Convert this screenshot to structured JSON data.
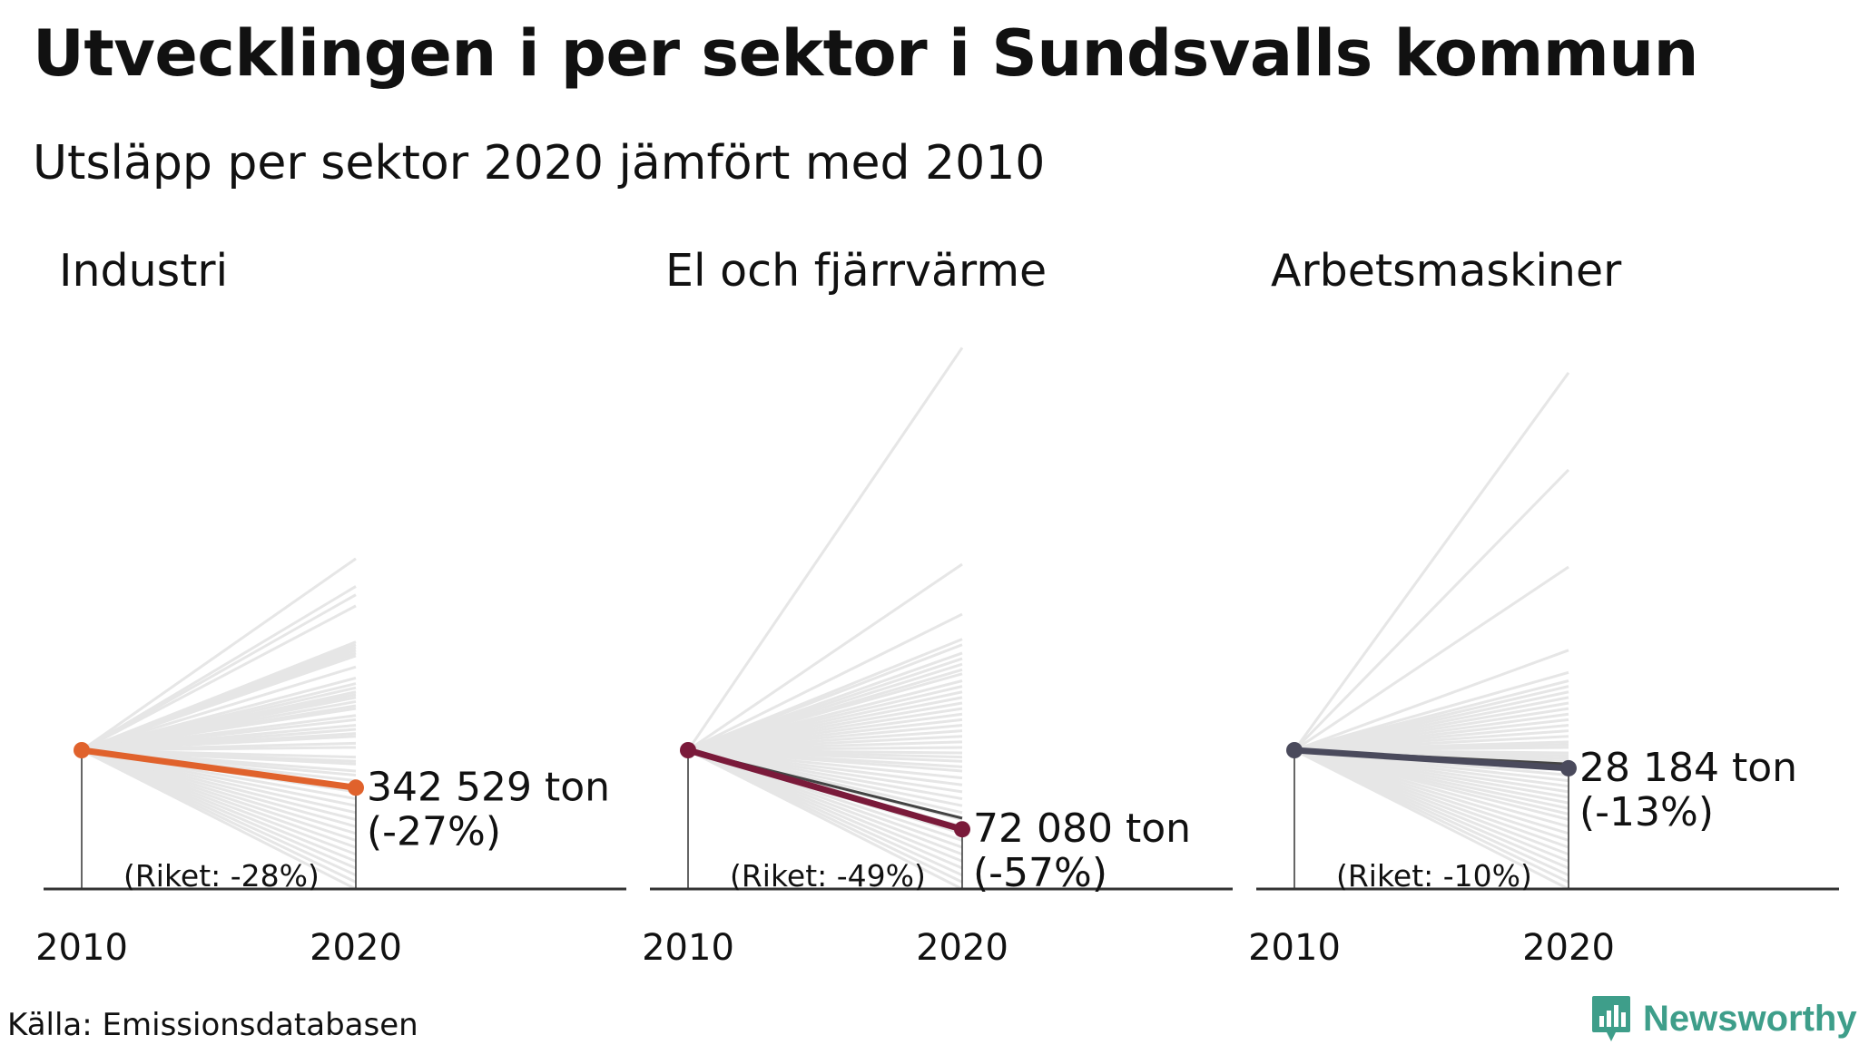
{
  "title": "Utvecklingen i per sektor i Sundsvalls kommun",
  "subtitle": "Utsläpp per sektor 2020 jämfört med 2010",
  "source": "Källa: Emissionsdatabasen",
  "brand": {
    "name": "Newsworthy",
    "color": "#3e9e8a",
    "icon": "bar-chart-speech-bubble-icon"
  },
  "chart_data": [
    {
      "type": "line",
      "title": "Industri",
      "x": [
        "2010",
        "2020"
      ],
      "highlight": {
        "value_2020": "342 529 ton",
        "change": "(-27%)",
        "change_pct": -27,
        "color": "#e0622c"
      },
      "national": {
        "label": "(Riket: -28%)",
        "change_pct": -28
      },
      "background_change_pct": [
        138,
        118,
        112,
        104,
        78,
        76,
        74,
        72,
        70,
        68,
        60,
        52,
        48,
        45,
        42,
        40,
        38,
        35,
        32,
        30,
        25,
        22,
        18,
        15,
        12,
        10,
        5,
        2,
        -5,
        -8,
        -10,
        -15,
        -18,
        -22,
        -30,
        -35,
        -40,
        -45,
        -50,
        -55,
        -60,
        -65,
        -70,
        -75,
        -80,
        -85,
        -90,
        -95,
        -100
      ]
    },
    {
      "type": "line",
      "title": "El och fjärrvärme",
      "x": [
        "2010",
        "2020"
      ],
      "highlight": {
        "value_2020": "72 080 ton",
        "change": "(-57%)",
        "change_pct": -57,
        "color": "#7a1a3a"
      },
      "national": {
        "label": "(Riket: -49%)",
        "change_pct": -49
      },
      "background_change_pct": [
        290,
        134,
        98,
        80,
        76,
        70,
        66,
        62,
        58,
        55,
        50,
        46,
        42,
        38,
        34,
        30,
        26,
        22,
        18,
        14,
        10,
        6,
        2,
        -2,
        -5,
        -8,
        -12,
        -15,
        -20,
        -25,
        -30,
        -35,
        -40,
        -45,
        -50,
        -55,
        -60,
        -65,
        -70,
        -75,
        -80,
        -85,
        -90,
        -95,
        -100
      ]
    },
    {
      "type": "line",
      "title": "Arbetsmaskiner",
      "x": [
        "2010",
        "2020"
      ],
      "highlight": {
        "value_2020": "28 184 ton",
        "change": "(-13%)",
        "change_pct": -13,
        "color": "#4a4a5c"
      },
      "national": {
        "label": "(Riket: -10%)",
        "change_pct": -10
      },
      "background_change_pct": [
        272,
        202,
        132,
        72,
        56,
        50,
        46,
        42,
        38,
        34,
        30,
        26,
        22,
        18,
        14,
        10,
        6,
        4,
        2,
        -2,
        -4,
        -6,
        -8,
        -10,
        -14,
        -18,
        -22,
        -26,
        -30,
        -34,
        -38,
        -42,
        -46,
        -50,
        -55,
        -60,
        -65,
        -70,
        -75,
        -80,
        -85,
        -90,
        -95,
        -100
      ]
    }
  ]
}
